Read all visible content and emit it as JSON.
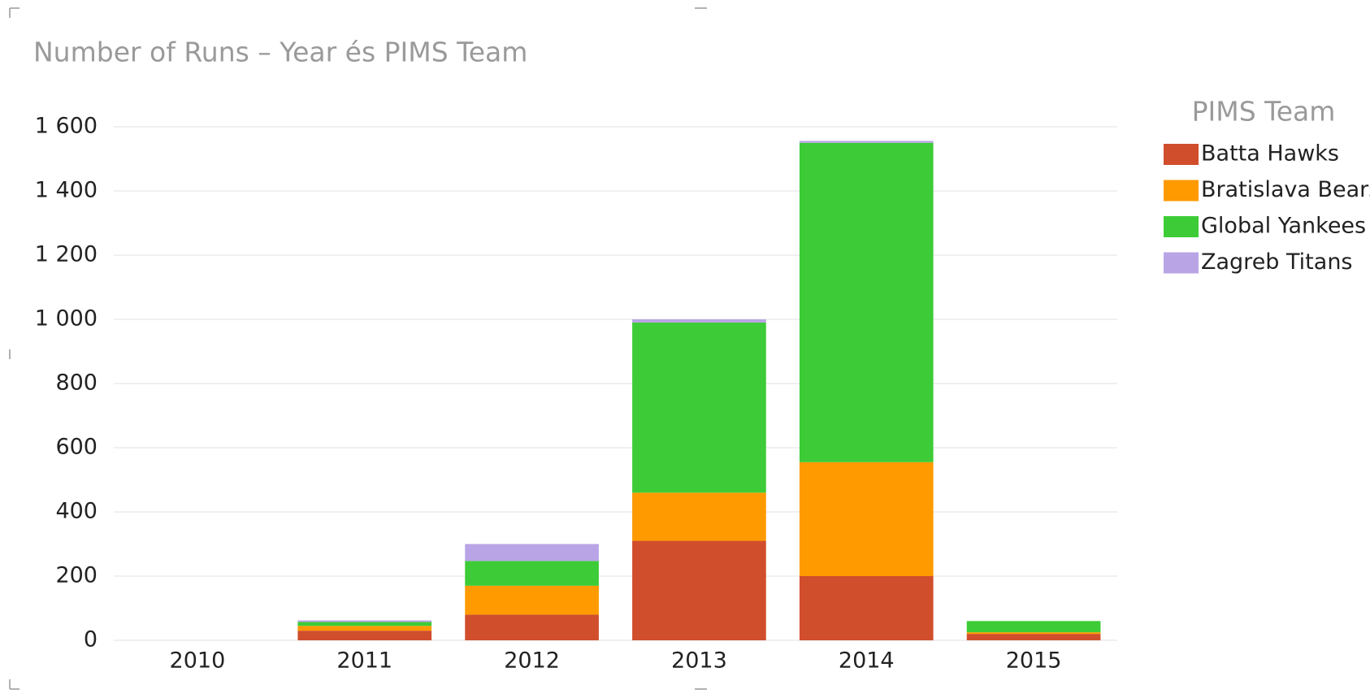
{
  "chart_data": {
    "type": "stacked_bar",
    "title": "Number of Runs – Year és PIMS Team",
    "legend_title": "PIMS Team",
    "legend": "right",
    "categories": [
      "2010",
      "2011",
      "2012",
      "2013",
      "2014",
      "2015"
    ],
    "series": [
      {
        "name": "Batta Hawks",
        "color": "#d04e2c",
        "values": [
          0,
          30,
          80,
          310,
          200,
          20
        ]
      },
      {
        "name": "Bratislava Bears",
        "color": "#ff9a00",
        "values": [
          0,
          15,
          90,
          150,
          355,
          5
        ]
      },
      {
        "name": "Global Yankees",
        "color": "#3dcc37",
        "values": [
          0,
          12,
          77,
          530,
          995,
          35
        ]
      },
      {
        "name": "Zagreb Titans",
        "color": "#b9a4e6",
        "values": [
          0,
          5,
          53,
          10,
          6,
          0
        ]
      }
    ],
    "ylim": [
      0,
      1600
    ],
    "yticks": [
      0,
      200,
      400,
      600,
      800,
      {
        "value": 1000,
        "label": "1 000"
      },
      {
        "value": 1200,
        "label": "1 200"
      },
      {
        "value": 1400,
        "label": "1 400"
      },
      {
        "value": 1600,
        "label": "1 600"
      }
    ],
    "grid": true
  }
}
